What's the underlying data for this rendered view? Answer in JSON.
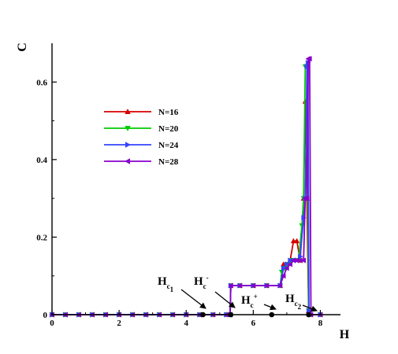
{
  "chart_data": {
    "type": "line",
    "xlabel": "H",
    "ylabel": "C",
    "xlim": [
      0,
      8.6
    ],
    "ylim": [
      0,
      0.7
    ],
    "xticks": [
      0,
      2,
      4,
      6,
      8
    ],
    "yticks": [
      0,
      0.2,
      0.4,
      0.6
    ],
    "xtick_labels": [
      "0",
      "2",
      "4",
      "6",
      "8"
    ],
    "ytick_labels": [
      "0",
      "0.2",
      "0.4",
      "0.6"
    ],
    "grid": false,
    "legend_position": "upper-left",
    "series": [
      {
        "name": "N=16",
        "color": "#d40000",
        "marker": "triangle-up",
        "x": [
          0,
          0.4,
          0.8,
          1.2,
          1.6,
          2.0,
          2.4,
          2.8,
          3.2,
          3.6,
          4.0,
          4.4,
          4.8,
          5.2,
          5.31,
          5.33,
          5.6,
          6.0,
          6.4,
          6.8,
          6.9,
          7.0,
          7.1,
          7.2,
          7.3,
          7.4,
          7.5,
          7.55,
          7.6,
          7.65,
          7.7,
          8.0
        ],
        "y": [
          0,
          0,
          0,
          0,
          0,
          0,
          0,
          0,
          0,
          0,
          0,
          0,
          0,
          0,
          0,
          0.075,
          0.075,
          0.075,
          0.075,
          0.075,
          0.13,
          0.13,
          0.14,
          0.19,
          0.19,
          0.14,
          0.3,
          0.55,
          0.3,
          0.01,
          0,
          0
        ]
      },
      {
        "name": "N=20",
        "color": "#00cc00",
        "marker": "triangle-down",
        "x": [
          0,
          0.4,
          0.8,
          1.2,
          1.6,
          2.0,
          2.4,
          2.8,
          3.2,
          3.6,
          4.0,
          4.4,
          4.8,
          5.2,
          5.31,
          5.33,
          5.6,
          6.0,
          6.4,
          6.8,
          6.85,
          6.95,
          7.05,
          7.15,
          7.25,
          7.35,
          7.45,
          7.5,
          7.55,
          7.6,
          7.65,
          7.7,
          8.0
        ],
        "y": [
          0,
          0,
          0,
          0,
          0,
          0,
          0,
          0,
          0,
          0,
          0,
          0,
          0,
          0,
          0,
          0.075,
          0.075,
          0.075,
          0.075,
          0.075,
          0.11,
          0.12,
          0.13,
          0.14,
          0.14,
          0.14,
          0.23,
          0.3,
          0.64,
          0.64,
          0.01,
          0,
          0
        ]
      },
      {
        "name": "N=24",
        "color": "#3344ff",
        "marker": "triangle-right",
        "x": [
          0,
          0.4,
          0.8,
          1.2,
          1.6,
          2.0,
          2.4,
          2.8,
          3.2,
          3.6,
          4.0,
          4.4,
          4.8,
          5.2,
          5.31,
          5.33,
          5.6,
          6.0,
          6.4,
          6.8,
          6.9,
          7.0,
          7.1,
          7.2,
          7.3,
          7.4,
          7.5,
          7.55,
          7.6,
          7.63,
          7.66,
          7.7,
          8.0
        ],
        "y": [
          0,
          0,
          0,
          0,
          0,
          0,
          0,
          0,
          0,
          0,
          0,
          0,
          0,
          0,
          0,
          0.075,
          0.075,
          0.075,
          0.075,
          0.075,
          0.12,
          0.13,
          0.14,
          0.14,
          0.14,
          0.15,
          0.25,
          0.3,
          0.64,
          0.65,
          0.01,
          0,
          0
        ]
      },
      {
        "name": "N=28",
        "color": "#8800cc",
        "marker": "triangle-left",
        "x": [
          0,
          0.4,
          0.8,
          1.2,
          1.6,
          2.0,
          2.4,
          2.8,
          3.2,
          3.6,
          4.0,
          4.4,
          4.8,
          5.2,
          5.31,
          5.33,
          5.6,
          6.0,
          6.4,
          6.8,
          6.9,
          7.0,
          7.1,
          7.2,
          7.3,
          7.4,
          7.5,
          7.55,
          7.6,
          7.64,
          7.68,
          7.72,
          8.0
        ],
        "y": [
          0,
          0,
          0,
          0,
          0,
          0,
          0,
          0,
          0,
          0,
          0,
          0,
          0,
          0,
          0,
          0.075,
          0.075,
          0.075,
          0.075,
          0.075,
          0.1,
          0.12,
          0.13,
          0.14,
          0.14,
          0.14,
          0.14,
          0.3,
          0.3,
          0.66,
          0.66,
          0,
          0
        ]
      }
    ],
    "critical_points": [
      {
        "name": "Hc1",
        "base": "H",
        "sub": "c",
        "subsub": "1",
        "sup": "",
        "x": 4.5,
        "y": 0
      },
      {
        "name": "Hc-",
        "base": "H",
        "sub": "c",
        "subsub": "",
        "sup": "-",
        "x": 5.33,
        "y": 0
      },
      {
        "name": "Hc+",
        "base": "H",
        "sub": "c",
        "subsub": "",
        "sup": "+",
        "x": 6.55,
        "y": 0
      },
      {
        "name": "Hc2",
        "base": "H",
        "sub": "c",
        "subsub": "2",
        "sup": "",
        "x": 7.65,
        "y": 0
      }
    ]
  }
}
